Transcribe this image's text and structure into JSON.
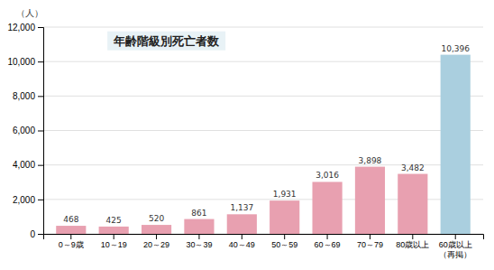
{
  "chart_data": {
    "type": "bar",
    "title": "年齢階級別死亡者数",
    "ylabel": "（人）",
    "categories": [
      "0～9歳",
      "10～19",
      "20～29",
      "30～39",
      "40～49",
      "50～59",
      "60～69",
      "70～79",
      "80歳以上",
      "60歳以上\n（再掲）"
    ],
    "values": [
      468,
      425,
      520,
      861,
      1137,
      1931,
      3016,
      3898,
      3482,
      10396
    ],
    "value_labels": [
      "468",
      "425",
      "520",
      "861",
      "1,137",
      "1,931",
      "3,016",
      "3,898",
      "3,482",
      "10,396"
    ],
    "colors": [
      "#e8a0b0",
      "#e8a0b0",
      "#e8a0b0",
      "#e8a0b0",
      "#e8a0b0",
      "#e8a0b0",
      "#e8a0b0",
      "#e8a0b0",
      "#e8a0b0",
      "#aacfdf"
    ],
    "ylim": [
      0,
      12000
    ],
    "yticks": [
      0,
      {
        "value": 2000,
        "label": "2,000"
      },
      {
        "value": 4000,
        "label": "4,000"
      },
      {
        "value": 6000,
        "label": "6,000"
      },
      {
        "value": 8000,
        "label": "8,000"
      },
      {
        "value": 10000,
        "label": "10,000"
      },
      {
        "value": 12000,
        "label": "12,000"
      }
    ],
    "grid": true,
    "data_labels": true
  }
}
